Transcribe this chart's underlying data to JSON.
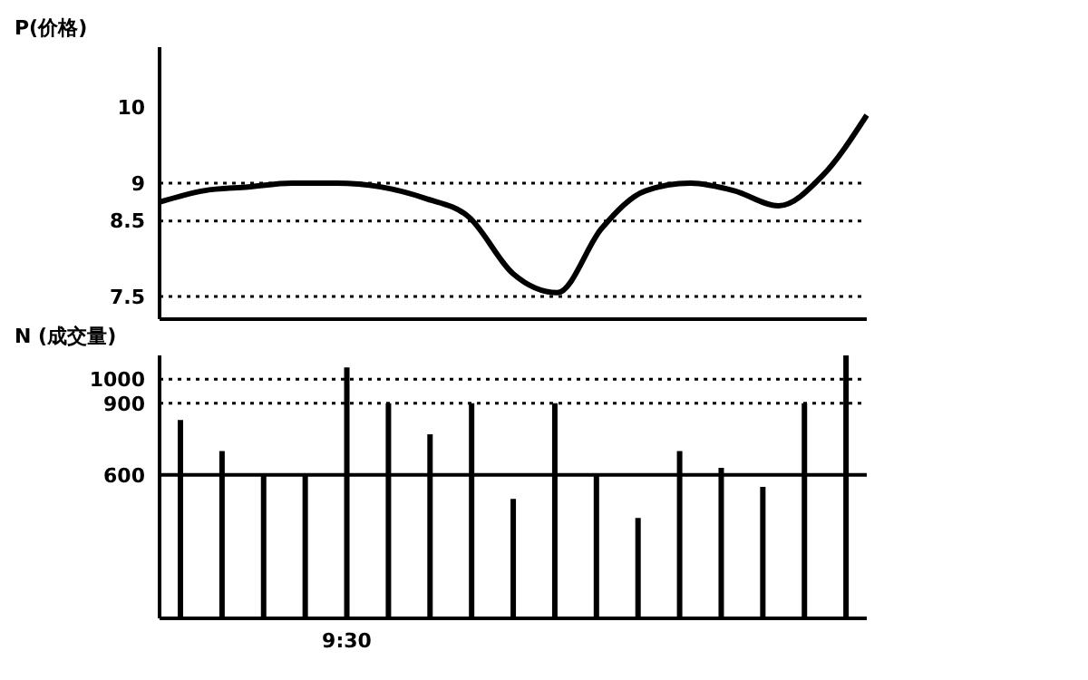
{
  "chart_data": [
    {
      "type": "line",
      "ylabel": "P(价格)",
      "categories": [
        null,
        null,
        null,
        null,
        null,
        null,
        null,
        null,
        null,
        null,
        null,
        null,
        null,
        null,
        null,
        null,
        null
      ],
      "series": [
        {
          "color": "#000000",
          "values": [
            8.75,
            8.9,
            8.95,
            9,
            9,
            8.95,
            8.8,
            8.55,
            7.8,
            7.55,
            8.4,
            8.9,
            9,
            8.9,
            8.7,
            9.1,
            9.9
          ]
        }
      ],
      "ylim": [
        7.2,
        10.8
      ],
      "yticks": [
        7.5,
        8.5,
        9,
        10
      ],
      "tick_labels": "y",
      "grid": false,
      "legend": false,
      "marker": "none",
      "line_style": "solid",
      "ref_lines": [
        {
          "axis": "y",
          "value": 9,
          "line_style": "dotted",
          "color": "#000000"
        },
        {
          "axis": "y",
          "value": 8.5,
          "line_style": "dotted",
          "color": "#000000"
        },
        {
          "axis": "y",
          "value": 7.5,
          "line_style": "dotted",
          "color": "#000000"
        }
      ]
    },
    {
      "type": "bar",
      "ylabel": "N (成交量)",
      "categories": [
        null,
        null,
        null,
        null,
        "9:30",
        null,
        null,
        null,
        null,
        null,
        null,
        null,
        null,
        null,
        null,
        null,
        null
      ],
      "series": [
        {
          "color": "#000000",
          "values": [
            830,
            700,
            600,
            600,
            1050,
            900,
            770,
            900,
            500,
            900,
            600,
            420,
            700,
            630,
            550,
            900,
            1100
          ]
        }
      ],
      "ylim": [
        0,
        1100
      ],
      "yticks": [
        600,
        900,
        1000
      ],
      "grid": false,
      "legend": false,
      "ref_lines": [
        {
          "axis": "y",
          "value": 1000,
          "line_style": "dotted",
          "color": "#000000"
        },
        {
          "axis": "y",
          "value": 900,
          "line_style": "dotted",
          "color": "#000000"
        },
        {
          "axis": "y",
          "value": 600,
          "line_style": "solid",
          "color": "#000000"
        }
      ]
    }
  ]
}
